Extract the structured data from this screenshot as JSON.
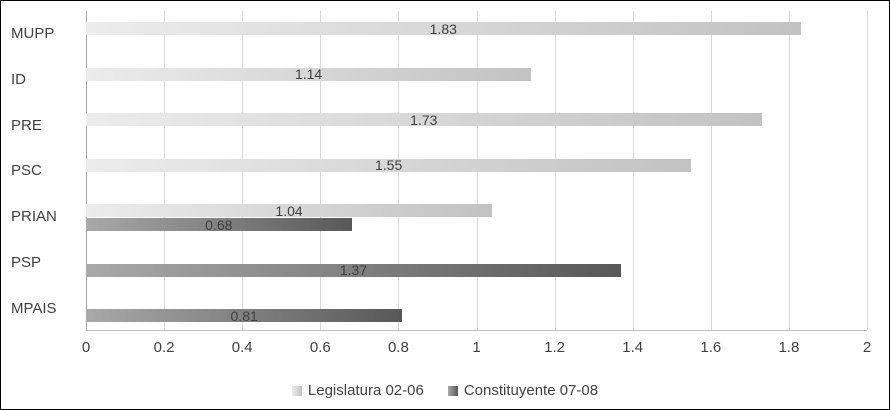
{
  "chart_data": {
    "type": "bar",
    "orientation": "horizontal",
    "title": "",
    "xlabel": "",
    "ylabel": "",
    "categories": [
      "MUPP",
      "ID",
      "PRE",
      "PSC",
      "PRIAN",
      "PSP",
      "MPAIS"
    ],
    "series": [
      {
        "name": "Legislatura 02-06",
        "color_start": "#ececec",
        "color_end": "#c2c2c2",
        "legend_color": "#d2d2d2",
        "values": [
          1.83,
          1.14,
          1.73,
          1.55,
          1.04,
          null,
          null
        ]
      },
      {
        "name": "Constituyente 07-08",
        "color_start": "#a9a9a9",
        "color_end": "#585858",
        "legend_color": "#7a7a7a",
        "values": [
          null,
          null,
          null,
          null,
          0.68,
          1.37,
          0.81
        ]
      }
    ],
    "data_labels": true,
    "xlim": [
      0,
      2
    ],
    "xticks": [
      0,
      0.2,
      0.4,
      0.6,
      0.8,
      1,
      1.2,
      1.4,
      1.6,
      1.8,
      2
    ],
    "xtick_labels": [
      "0",
      "0.2",
      "0.4",
      "0.6",
      "0.8",
      "1",
      "1.2",
      "1.4",
      "1.6",
      "1.8",
      "2"
    ],
    "grid": true,
    "gridline_color": "#d9d9d9",
    "axis_line_color": "#a6a6a6",
    "legend_position": "bottom"
  }
}
